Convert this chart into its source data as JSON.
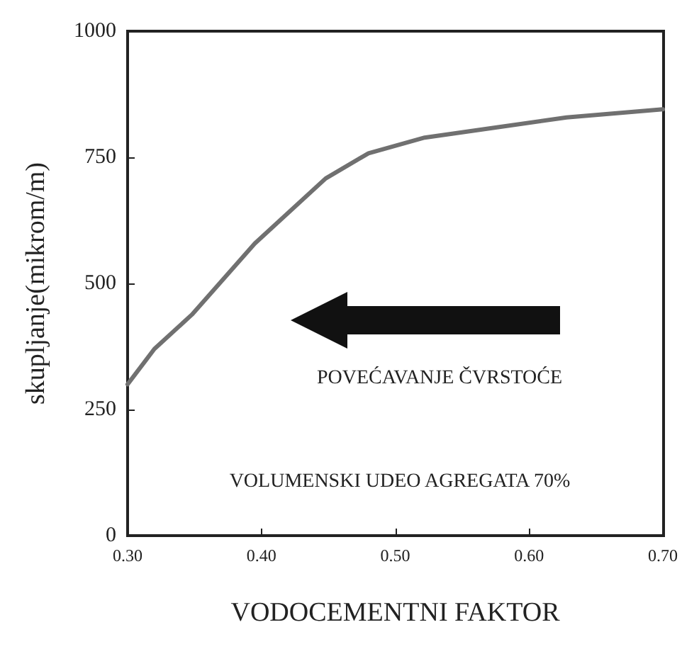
{
  "chart_data": {
    "type": "line",
    "xlabel": "VODOCEMENTNI FAKTOR",
    "ylabel": "skupljanje(mikrom/m)",
    "x": [
      0.3,
      0.32,
      0.348,
      0.395,
      0.448,
      0.48,
      0.522,
      0.575,
      0.628,
      0.7
    ],
    "series": [
      {
        "color": "#707070",
        "values": [
          300,
          370,
          438,
          579,
          708,
          758,
          789,
          809,
          829,
          845
        ]
      }
    ],
    "xlim": [
      0.3,
      0.7
    ],
    "xticks": [
      {
        "value": 0.3,
        "label": "0.30"
      },
      {
        "value": 0.4,
        "label": "0.40"
      },
      {
        "value": 0.5,
        "label": "0.50"
      },
      {
        "value": 0.6,
        "label": "0.60"
      },
      {
        "value": 0.7,
        "label": "0.70"
      }
    ],
    "ylim": [
      0,
      1000
    ],
    "yticks": [
      0,
      250,
      500,
      750,
      1000
    ],
    "annotations": [
      "POVEĆAVANJE ČVRSTOĆE",
      "VOLUMENSKI UDEO AGREGATA 70%"
    ],
    "grid": false,
    "marker": "none",
    "line_style": "solid"
  }
}
